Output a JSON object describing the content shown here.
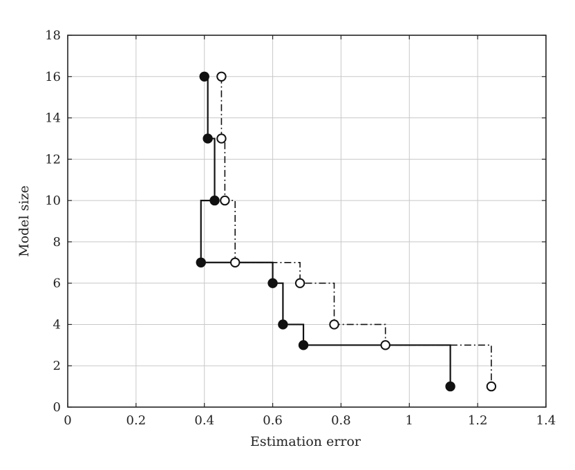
{
  "chart_data": {
    "type": "line",
    "title": "",
    "xlabel": "Estimation error",
    "ylabel": "Model size",
    "xlim": [
      0,
      1.4
    ],
    "ylim": [
      0,
      18
    ],
    "xticks": [
      0,
      0.2,
      0.4,
      0.6,
      0.8,
      1,
      1.2,
      1.4
    ],
    "xtick_labels": [
      "0",
      "0.2",
      "0.4",
      "0.6",
      "0.8",
      "1",
      "1.2",
      "1.4"
    ],
    "yticks": [
      0,
      2,
      4,
      6,
      8,
      10,
      12,
      14,
      16,
      18
    ],
    "ytick_labels": [
      "0",
      "2",
      "4",
      "6",
      "8",
      "10",
      "12",
      "14",
      "16",
      "18"
    ],
    "grid": true,
    "legend": "none",
    "series": [
      {
        "style": "solid-step",
        "marker": "filled-circle",
        "color": "#111111",
        "points": [
          {
            "x": 0.4,
            "y": 16
          },
          {
            "x": 0.41,
            "y": 13
          },
          {
            "x": 0.43,
            "y": 10
          },
          {
            "x": 0.39,
            "y": 7
          },
          {
            "x": 0.6,
            "y": 6
          },
          {
            "x": 0.63,
            "y": 4
          },
          {
            "x": 0.69,
            "y": 3
          },
          {
            "x": 1.12,
            "y": 1
          }
        ]
      },
      {
        "style": "dash-dot-step",
        "marker": "open-circle",
        "color": "#111111",
        "points": [
          {
            "x": 0.45,
            "y": 16
          },
          {
            "x": 0.45,
            "y": 13
          },
          {
            "x": 0.46,
            "y": 10
          },
          {
            "x": 0.49,
            "y": 7
          },
          {
            "x": 0.68,
            "y": 6
          },
          {
            "x": 0.78,
            "y": 4
          },
          {
            "x": 0.93,
            "y": 3
          },
          {
            "x": 1.24,
            "y": 1
          }
        ]
      }
    ]
  }
}
